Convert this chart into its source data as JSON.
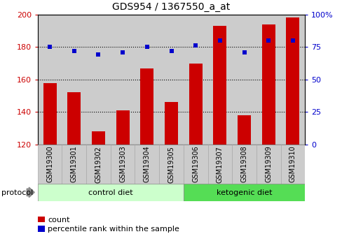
{
  "title": "GDS954 / 1367550_a_at",
  "samples": [
    "GSM19300",
    "GSM19301",
    "GSM19302",
    "GSM19303",
    "GSM19304",
    "GSM19305",
    "GSM19306",
    "GSM19307",
    "GSM19308",
    "GSM19309",
    "GSM19310"
  ],
  "counts": [
    158,
    152,
    128,
    141,
    167,
    146,
    170,
    193,
    138,
    194,
    198
  ],
  "percentiles": [
    75,
    72,
    69,
    71,
    75,
    72,
    76,
    80,
    71,
    80,
    80
  ],
  "ylim_left": [
    120,
    200
  ],
  "ylim_right": [
    0,
    100
  ],
  "yticks_left": [
    120,
    140,
    160,
    180,
    200
  ],
  "yticks_right": [
    0,
    25,
    50,
    75,
    100
  ],
  "bar_color": "#cc0000",
  "dot_color": "#0000cc",
  "grid_color": "black",
  "control_label": "control diet",
  "ketogenic_label": "ketogenic diet",
  "protocol_label": "protocol",
  "control_bg": "#ccffcc",
  "ketogenic_bg": "#55dd55",
  "sample_bg": "#cccccc",
  "legend_count_label": "count",
  "legend_pct_label": "percentile rank within the sample",
  "bar_width": 0.55,
  "bar_bottom": 120,
  "fig_bg": "#ffffff"
}
